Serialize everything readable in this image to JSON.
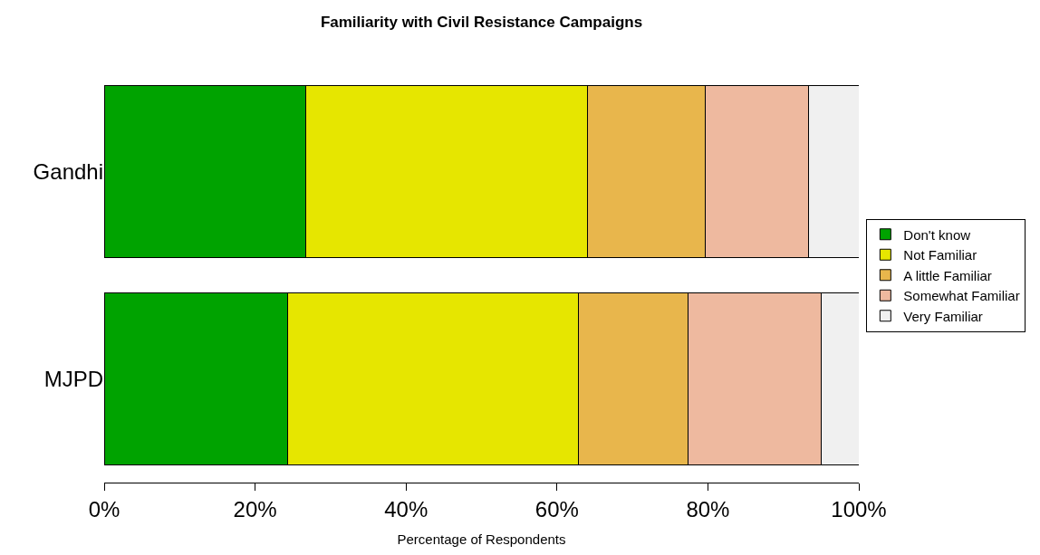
{
  "chart_data": {
    "type": "bar",
    "orientation": "horizontal",
    "stacked": true,
    "title": "Familiarity with Civil Resistance Campaigns",
    "xlabel": "Percentage of Respondents",
    "categories": [
      "Gandhi",
      "MJPD"
    ],
    "series": [
      {
        "name": "Don't know",
        "color": "#00a300",
        "values": [
          26.7,
          24.3
        ]
      },
      {
        "name": "Not Familiar",
        "color": "#e6e600",
        "values": [
          37.4,
          38.5
        ]
      },
      {
        "name": "A little Familiar",
        "color": "#e8b64c",
        "values": [
          15.5,
          14.6
        ]
      },
      {
        "name": "Somewhat Familiar",
        "color": "#eeb99f",
        "values": [
          13.7,
          17.6
        ]
      },
      {
        "name": "Very Familiar",
        "color": "#f0f0f0",
        "values": [
          6.7,
          5.0
        ]
      }
    ],
    "xlim": [
      0,
      100
    ],
    "xticks": [
      {
        "value": 0,
        "label": "0%"
      },
      {
        "value": 20,
        "label": "20%"
      },
      {
        "value": 40,
        "label": "40%"
      },
      {
        "value": 60,
        "label": "60%"
      },
      {
        "value": 80,
        "label": "80%"
      },
      {
        "value": 100,
        "label": "100%"
      }
    ],
    "legend": "right"
  }
}
